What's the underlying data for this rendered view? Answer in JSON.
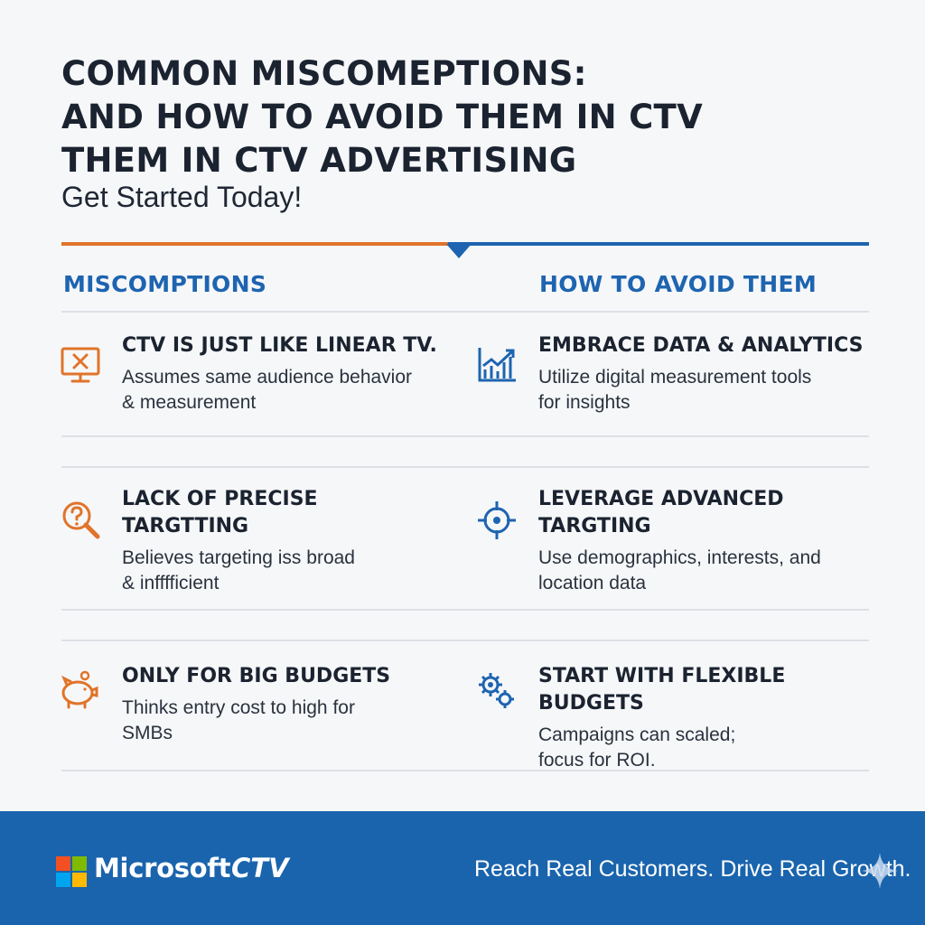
{
  "header": {
    "title_lines": [
      "COMMON MISCOMEPTIONS:",
      "AND HOW TO AVOID THEM  IN CTV",
      "THEM IN CTV ADVERTISING"
    ],
    "subtitle": "Get Started Today!"
  },
  "columns": {
    "left_heading": "MISCOMPTIONS",
    "right_heading": "HOW TO AVOID THEM"
  },
  "rows": [
    {
      "misconception": {
        "title": "CTV IS JUST LIKE LINEAR TV.",
        "desc": "Assumes same audience behavior\n& measurement",
        "icon": "tv-x-icon"
      },
      "solution": {
        "title": "EMBRACE DATA & ANALYTICS",
        "desc": "Utilize digital measurement tools\nfor insights",
        "icon": "chart-trend-icon"
      }
    },
    {
      "misconception": {
        "title": "LACK OF PRECISE\nTARGTTING",
        "desc": "Believes targeting iss broad\n& infffficient",
        "icon": "magnifier-question-icon"
      },
      "solution": {
        "title": "LEVERAGE ADVANCED\nTARGTING",
        "desc": "Use demographics, interests, and\nlocation data",
        "icon": "crosshair-icon"
      }
    },
    {
      "misconception": {
        "title": "ONLY FOR BIG BUDGETS",
        "desc": "Thinks entry cost to high for\nSMBs",
        "icon": "piggy-bank-icon"
      },
      "solution": {
        "title": "START WITH FLEXIBLE BUDGETS",
        "desc": "Campaigns can scaled;\nfocus for ROI.",
        "icon": "gears-icon"
      }
    }
  ],
  "footer": {
    "brand": "Microsoft",
    "product": "CTV",
    "tagline": "Reach Real Customers. Drive Real Growth."
  },
  "colors": {
    "accent_orange": "#e0742a",
    "accent_blue": "#1e64b0",
    "footer_blue": "#1a64ad"
  }
}
